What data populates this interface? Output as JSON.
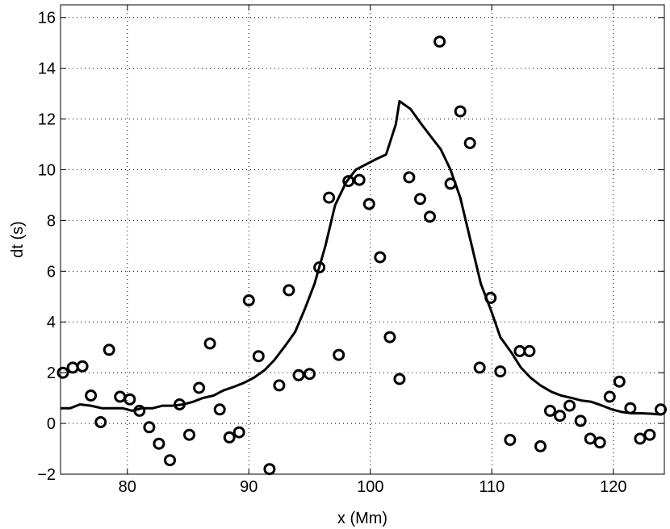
{
  "chart_data": {
    "type": "scatter",
    "title": "",
    "xlabel": "x (Mm)",
    "ylabel": "dt (s)",
    "xlim": [
      74.5,
      124.2
    ],
    "ylim": [
      -2,
      16.5
    ],
    "xticks": [
      80,
      90,
      100,
      110,
      120
    ],
    "yticks": [
      -2,
      0,
      2,
      4,
      6,
      8,
      10,
      12,
      14,
      16
    ],
    "grid": true,
    "legend": "none",
    "series": [
      {
        "style": "line",
        "x": [
          74.5,
          75.3,
          76.1,
          77.0,
          77.9,
          78.7,
          79.6,
          80.4,
          81.2,
          82.1,
          82.9,
          83.7,
          84.6,
          85.4,
          86.2,
          87.1,
          87.9,
          88.8,
          89.6,
          90.4,
          91.3,
          92.1,
          92.9,
          93.8,
          94.6,
          95.4,
          96.3,
          97.1,
          98.0,
          98.8,
          99.6,
          100.4,
          101.3,
          102.1,
          102.4,
          103.3,
          104.2,
          105.0,
          105.8,
          106.6,
          107.4,
          108.2,
          109.1,
          109.9,
          110.7,
          111.6,
          112.4,
          113.2,
          114.0,
          114.9,
          115.7,
          116.6,
          117.4,
          118.2,
          119.1,
          119.9,
          120.7,
          121.5,
          122.3,
          123.2,
          124.0
        ],
        "y": [
          0.6,
          0.6,
          0.75,
          0.7,
          0.6,
          0.6,
          0.6,
          0.5,
          0.6,
          0.6,
          0.7,
          0.7,
          0.75,
          0.85,
          1.0,
          1.1,
          1.3,
          1.45,
          1.6,
          1.8,
          2.1,
          2.5,
          3.0,
          3.6,
          4.5,
          5.5,
          7.0,
          8.6,
          9.5,
          10.0,
          10.2,
          10.4,
          10.6,
          11.8,
          12.7,
          12.4,
          11.8,
          11.3,
          10.8,
          10.0,
          8.9,
          7.3,
          5.5,
          4.5,
          3.4,
          2.8,
          2.2,
          1.8,
          1.5,
          1.25,
          1.1,
          1.0,
          0.9,
          0.85,
          0.7,
          0.55,
          0.45,
          0.4,
          0.4,
          0.38,
          0.35
        ]
      },
      {
        "style": "markers",
        "x": [
          74.7,
          75.5,
          76.3,
          77.0,
          77.8,
          78.5,
          79.4,
          80.2,
          81.0,
          81.8,
          82.6,
          83.5,
          84.3,
          85.1,
          85.9,
          86.8,
          87.6,
          88.4,
          89.2,
          90.0,
          90.8,
          91.7,
          92.5,
          93.3,
          94.1,
          95.0,
          95.8,
          96.6,
          97.4,
          98.2,
          99.1,
          99.9,
          100.8,
          101.6,
          102.4,
          103.2,
          104.1,
          104.9,
          105.7,
          106.6,
          107.4,
          108.2,
          109.0,
          109.9,
          110.7,
          111.5,
          112.3,
          113.1,
          114.0,
          114.8,
          115.6,
          116.4,
          117.3,
          118.1,
          118.9,
          119.7,
          120.5,
          121.4,
          122.2,
          123.0,
          123.9
        ],
        "y": [
          2.0,
          2.2,
          2.25,
          1.1,
          0.05,
          2.9,
          1.05,
          0.95,
          0.5,
          -0.15,
          -0.8,
          -1.45,
          0.75,
          -0.45,
          1.4,
          3.15,
          0.55,
          -0.55,
          -0.35,
          4.85,
          2.65,
          -1.8,
          1.5,
          5.25,
          1.9,
          1.95,
          6.15,
          8.9,
          2.7,
          9.55,
          9.6,
          8.65,
          6.55,
          3.4,
          1.75,
          9.7,
          8.85,
          8.15,
          15.05,
          9.45,
          12.3,
          11.05,
          2.2,
          4.95,
          2.05,
          -0.65,
          2.85,
          2.85,
          -0.9,
          0.5,
          0.3,
          0.7,
          0.1,
          -0.6,
          -0.75,
          1.05,
          1.65,
          0.6,
          -0.6,
          -0.45,
          0.55
        ]
      }
    ]
  }
}
